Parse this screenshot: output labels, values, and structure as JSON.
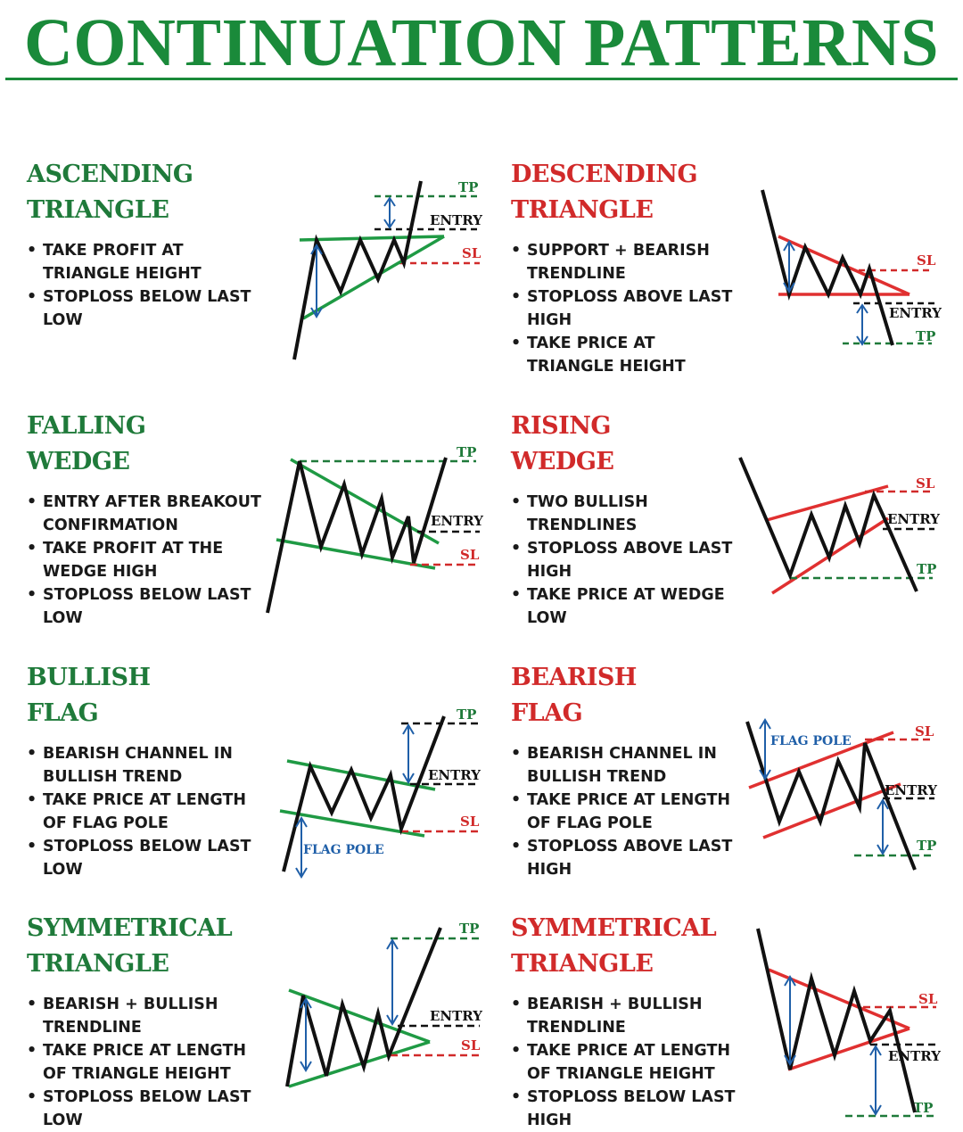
{
  "title": "CONTINUATION PATTERNS",
  "colors": {
    "green": "#1f7a3a",
    "red": "#d12a2a",
    "blue": "#1f5fa8",
    "black": "#111111"
  },
  "sections": [
    {
      "title_line1": "ASCENDING",
      "title_line2": "TRIANGLE",
      "bullets": [
        "TAKE PROFIT AT TRIANGLE HEIGHT",
        "STOPLOSS BELOW LAST LOW"
      ],
      "labels": {
        "tp": "TP",
        "entry": "ENTRY",
        "sl": "SL"
      }
    },
    {
      "title_line1": "DESCENDING",
      "title_line2": "TRIANGLE",
      "bullets": [
        "SUPPORT + BEARISH TRENDLINE",
        "STOPLOSS ABOVE LAST HIGH",
        "TAKE PRICE AT TRIANGLE HEIGHT"
      ],
      "labels": {
        "tp": "TP",
        "entry": "ENTRY",
        "sl": "SL"
      }
    },
    {
      "title_line1": "FALLING",
      "title_line2": "WEDGE",
      "bullets": [
        "ENTRY AFTER BREAKOUT CONFIRMATION",
        "TAKE PROFIT AT THE WEDGE HIGH",
        "STOPLOSS BELOW LAST LOW"
      ],
      "labels": {
        "tp": "TP",
        "entry": "ENTRY",
        "sl": "SL"
      }
    },
    {
      "title_line1": "RISING",
      "title_line2": "WEDGE",
      "bullets": [
        "TWO BULLISH TRENDLINES",
        "STOPLOSS ABOVE LAST HIGH",
        "TAKE PRICE AT WEDGE LOW"
      ],
      "labels": {
        "tp": "TP",
        "entry": "ENTRY",
        "sl": "SL"
      }
    },
    {
      "title_line1": "BULLISH",
      "title_line2": "FLAG",
      "bullets": [
        "BEARISH CHANNEL IN BULLISH TREND",
        "TAKE PRICE AT LENGTH OF FLAG POLE",
        "STOPLOSS BELOW LAST LOW"
      ],
      "labels": {
        "tp": "TP",
        "entry": "ENTRY",
        "sl": "SL",
        "flag_pole": "FLAG POLE"
      }
    },
    {
      "title_line1": "BEARISH",
      "title_line2": "FLAG",
      "bullets": [
        "BEARISH CHANNEL IN BULLISH TREND",
        "TAKE PRICE AT LENGTH OF FLAG POLE",
        "STOPLOSS ABOVE LAST HIGH"
      ],
      "labels": {
        "tp": "TP",
        "entry": "ENTRY",
        "sl": "SL",
        "flag_pole": "FLAG POLE"
      }
    },
    {
      "title_line1": "SYMMETRICAL",
      "title_line2": "TRIANGLE",
      "bullets": [
        "BEARISH + BULLISH TRENDLINE",
        "TAKE PRICE AT LENGTH OF TRIANGLE HEIGHT",
        "STOPLOSS BELOW LAST LOW"
      ],
      "labels": {
        "tp": "TP",
        "entry": "ENTRY",
        "sl": "SL"
      }
    },
    {
      "title_line1": "SYMMETRICAL",
      "title_line2": "TRIANGLE",
      "bullets": [
        "BEARISH + BULLISH TRENDLINE",
        "TAKE PRICE AT LENGTH OF TRIANGLE HEIGHT",
        "STOPLOSS BELOW LAST HIGH"
      ],
      "labels": {
        "tp": "TP",
        "entry": "ENTRY",
        "sl": "SL"
      }
    }
  ]
}
